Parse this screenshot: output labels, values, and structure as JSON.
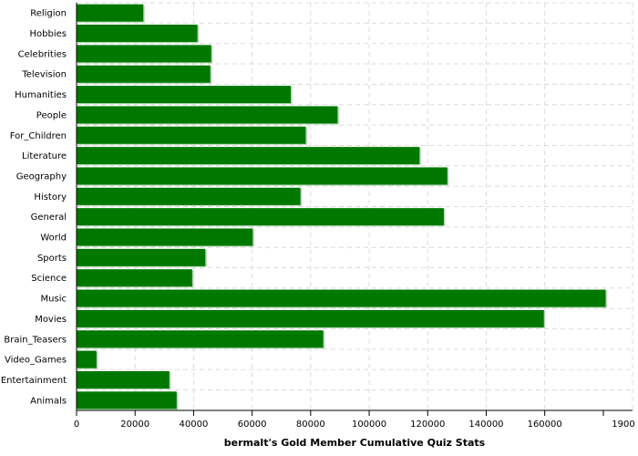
{
  "chart_data": {
    "type": "bar",
    "orientation": "horizontal",
    "title": "",
    "xlabel": "bermalt's Gold Member Cumulative Quiz Stats",
    "ylabel": "",
    "categories": [
      "Religion",
      "Hobbies",
      "Celebrities",
      "Television",
      "Humanities",
      "People",
      "For_Children",
      "Literature",
      "Geography",
      "History",
      "General",
      "World",
      "Sports",
      "Science",
      "Music",
      "Movies",
      "Brain_Teasers",
      "Video_Games",
      "Entertainment",
      "Animals"
    ],
    "values": [
      22800,
      41300,
      46000,
      45700,
      73200,
      89200,
      78300,
      117200,
      126700,
      76500,
      125500,
      60200,
      44000,
      39500,
      180800,
      159700,
      84300,
      6800,
      31700,
      34200
    ],
    "xlim": [
      0,
      190000
    ],
    "xticks": [
      0,
      20000,
      40000,
      60000,
      80000,
      100000,
      120000,
      140000,
      160000
    ],
    "xtick_labels": [
      "0",
      "20000",
      "40000",
      "60000",
      "80000",
      "100000",
      "120000",
      "140000",
      "160000"
    ],
    "xmax_label": "1900",
    "grid": true,
    "legend": "none",
    "bar_color": "#007800",
    "bar_highlight_color": "#b0d8b0"
  }
}
